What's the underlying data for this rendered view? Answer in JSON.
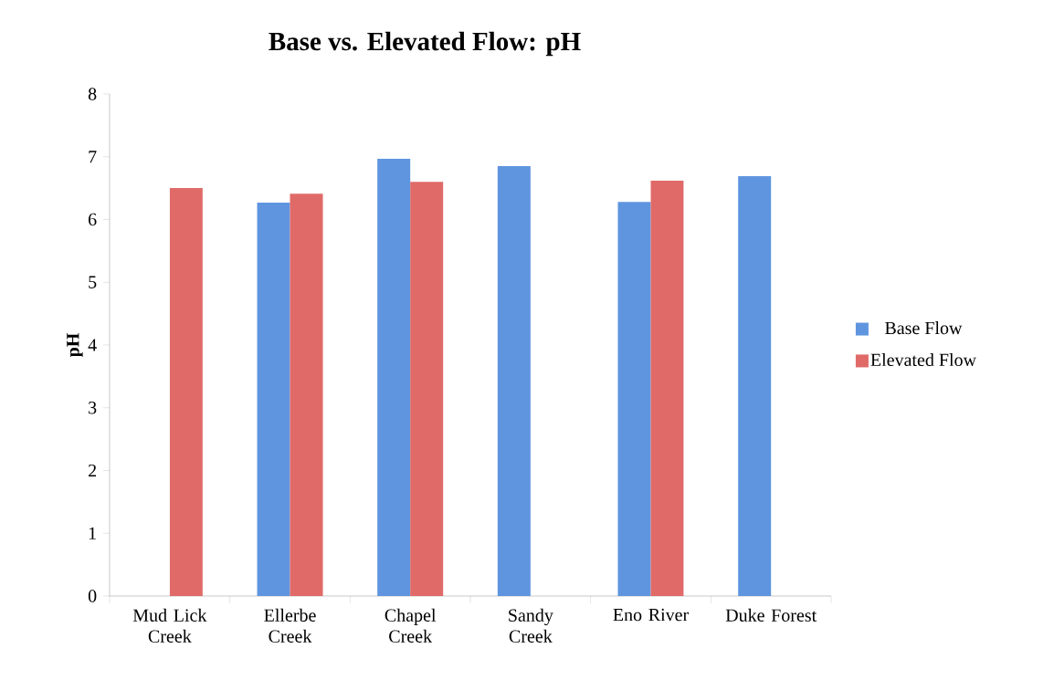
{
  "chart_data": {
    "type": "bar",
    "title": "Base vs. Elevated Flow: pH",
    "ylabel": "pH",
    "categories": [
      "Mud Lick Creek",
      "Ellerbe Creek",
      "Chapel Creek",
      "Sandy Creek",
      "Eno River",
      "Duke Forest"
    ],
    "series": [
      {
        "name": "Base Flow",
        "color": "#5f95df",
        "values": [
          null,
          6.27,
          6.97,
          6.85,
          6.28,
          6.69
        ]
      },
      {
        "name": "Elevated Flow",
        "color": "#e06a68",
        "values": [
          6.5,
          6.41,
          6.6,
          null,
          6.62,
          null
        ]
      }
    ],
    "ylim": [
      0,
      8
    ],
    "yticks": [
      0,
      1,
      2,
      3,
      4,
      5,
      6,
      7,
      8
    ],
    "legend": "right"
  }
}
